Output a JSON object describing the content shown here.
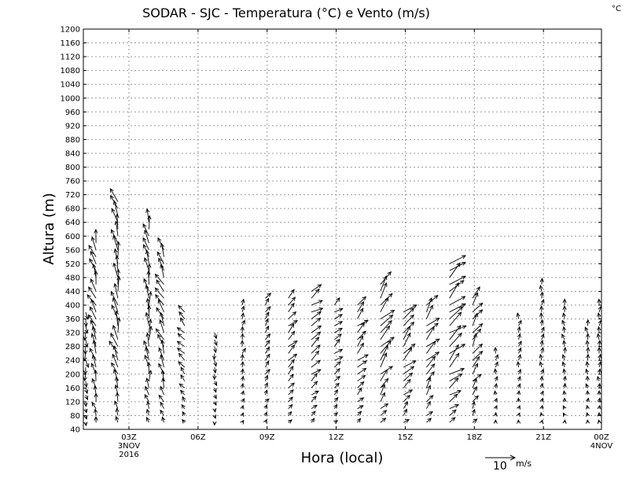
{
  "chart_data": {
    "type": "vector-field",
    "title": "SODAR - SJC - Temperatura (°C) e Vento (m/s)",
    "corner_label": "°C",
    "xlabel": "Hora (local)",
    "ylabel": "Altura (m)",
    "ylim": [
      40,
      1200
    ],
    "yticks": [
      40,
      80,
      120,
      160,
      200,
      240,
      280,
      320,
      360,
      400,
      440,
      480,
      520,
      560,
      600,
      640,
      680,
      720,
      760,
      800,
      840,
      880,
      920,
      960,
      1000,
      1040,
      1080,
      1120,
      1160,
      1200
    ],
    "xlim_hours": [
      0,
      22.5
    ],
    "xticks": [
      {
        "hour": 1.98,
        "label": "03Z",
        "sub1": "3NOV",
        "sub2": "2016"
      },
      {
        "hour": 4.98,
        "label": "06Z",
        "sub1": "",
        "sub2": ""
      },
      {
        "hour": 7.98,
        "label": "09Z",
        "sub1": "",
        "sub2": ""
      },
      {
        "hour": 10.98,
        "label": "12Z",
        "sub1": "",
        "sub2": ""
      },
      {
        "hour": 13.98,
        "label": "15Z",
        "sub1": "",
        "sub2": ""
      },
      {
        "hour": 16.98,
        "label": "18Z",
        "sub1": "",
        "sub2": ""
      },
      {
        "hour": 19.98,
        "label": "21Z",
        "sub1": "",
        "sub2": ""
      },
      {
        "hour": 22.5,
        "label": "00Z",
        "sub1": "4NOV",
        "sub2": ""
      }
    ],
    "grid": true,
    "reference_vector": {
      "speed": 10,
      "label": "10",
      "unit": "m/s"
    },
    "profiles": [
      {
        "hour": 0.1,
        "top": 380,
        "dir": 350,
        "speed": 2.5
      },
      {
        "hour": 0.55,
        "top": 580,
        "dir": 160,
        "speed": 4.5
      },
      {
        "hour": 1.5,
        "top": 700,
        "dir": 165,
        "speed": 5.0
      },
      {
        "hour": 2.85,
        "top": 640,
        "dir": 170,
        "speed": 4.5
      },
      {
        "hour": 3.5,
        "top": 570,
        "dir": 155,
        "speed": 4.5
      },
      {
        "hour": 4.4,
        "top": 390,
        "dir": 140,
        "speed": 3.0
      },
      {
        "hour": 5.7,
        "top": 330,
        "dir": 350,
        "speed": 2.0
      },
      {
        "hour": 6.9,
        "top": 400,
        "dir": 200,
        "speed": 2.0
      },
      {
        "hour": 7.9,
        "top": 420,
        "dir": 220,
        "speed": 2.5
      },
      {
        "hour": 8.9,
        "top": 430,
        "dir": 230,
        "speed": 3.5
      },
      {
        "hour": 9.9,
        "top": 440,
        "dir": 235,
        "speed": 4.0
      },
      {
        "hour": 10.9,
        "top": 400,
        "dir": 230,
        "speed": 3.0
      },
      {
        "hour": 11.9,
        "top": 410,
        "dir": 225,
        "speed": 4.0
      },
      {
        "hour": 12.9,
        "top": 470,
        "dir": 220,
        "speed": 5.5
      },
      {
        "hour": 13.9,
        "top": 390,
        "dir": 225,
        "speed": 5.0
      },
      {
        "hour": 14.9,
        "top": 400,
        "dir": 220,
        "speed": 5.0
      },
      {
        "hour": 15.9,
        "top": 520,
        "dir": 230,
        "speed": 6.0
      },
      {
        "hour": 16.9,
        "top": 430,
        "dir": 215,
        "speed": 4.5
      },
      {
        "hour": 17.9,
        "top": 270,
        "dir": 190,
        "speed": 2.0
      },
      {
        "hour": 18.9,
        "top": 360,
        "dir": 190,
        "speed": 2.0
      },
      {
        "hour": 19.9,
        "top": 470,
        "dir": 185,
        "speed": 2.0
      },
      {
        "hour": 20.9,
        "top": 410,
        "dir": 170,
        "speed": 2.0
      },
      {
        "hour": 21.9,
        "top": 350,
        "dir": 175,
        "speed": 2.0
      },
      {
        "hour": 22.4,
        "top": 410,
        "dir": 180,
        "speed": 2.0
      }
    ]
  }
}
